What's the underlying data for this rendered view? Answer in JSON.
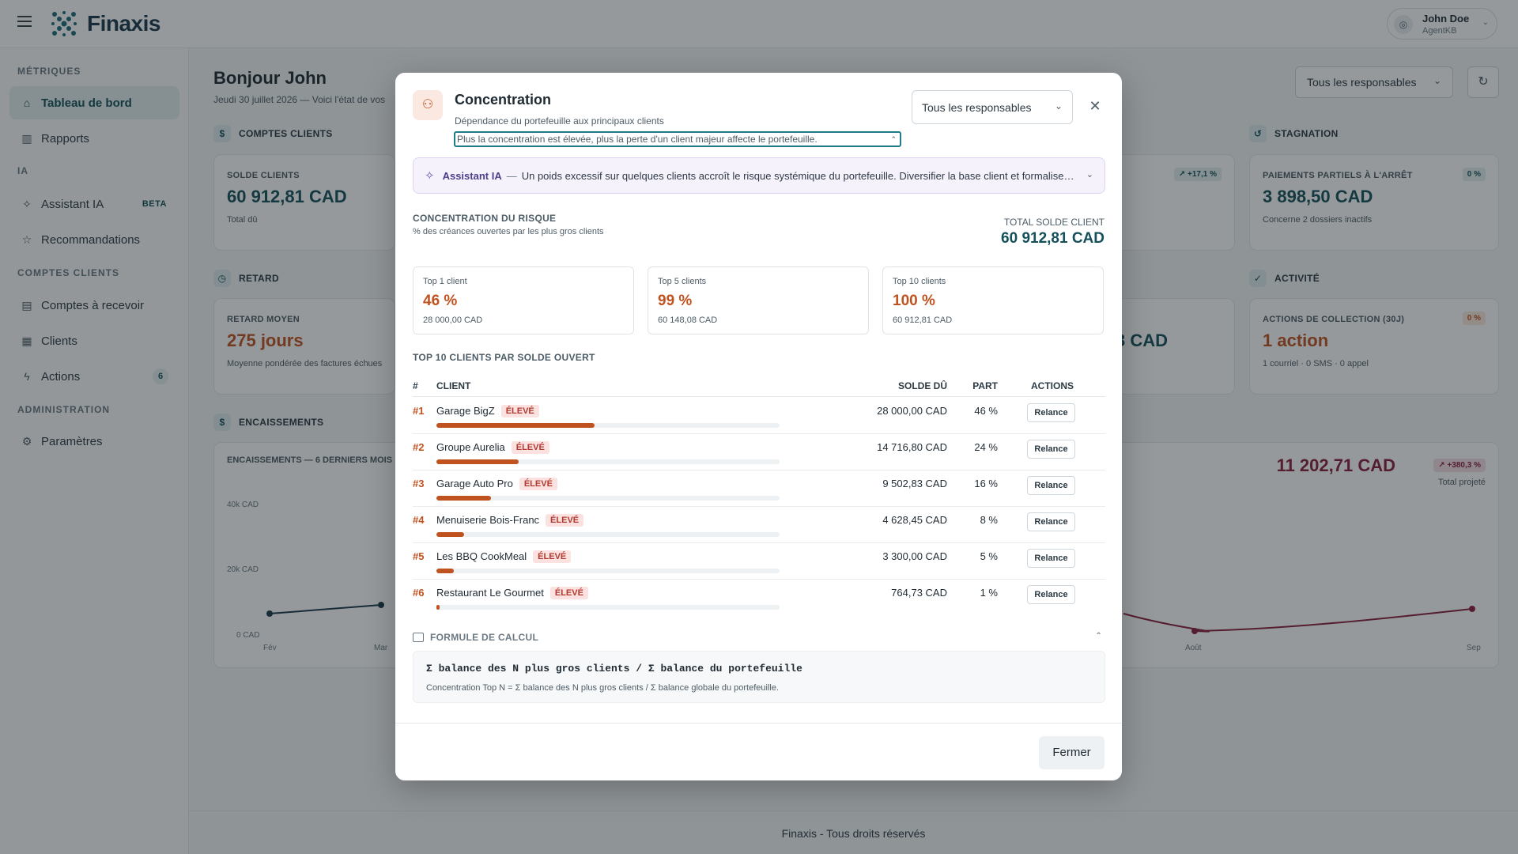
{
  "app": {
    "name": "Finaxis"
  },
  "user": {
    "name": "John Doe",
    "role": "AgentKB",
    "initials": "◎"
  },
  "sidebar": {
    "sections": [
      {
        "title": "MÉTRIQUES"
      },
      {
        "title": "IA"
      },
      {
        "title": "COMPTES CLIENTS"
      },
      {
        "title": "ADMINISTRATION"
      }
    ],
    "items": [
      {
        "label": "Tableau de bord",
        "icon": "home-icon",
        "glyph": "⌂"
      },
      {
        "label": "Rapports",
        "icon": "bar-chart-icon",
        "glyph": "▥"
      },
      {
        "label": "Assistant IA",
        "icon": "sparkle-icon",
        "glyph": "✧",
        "badge": "BETA"
      },
      {
        "label": "Recommandations",
        "icon": "star-icon",
        "glyph": "☆"
      },
      {
        "label": "Comptes à recevoir",
        "icon": "document-icon",
        "glyph": "▤"
      },
      {
        "label": "Clients",
        "icon": "building-icon",
        "glyph": "▦"
      },
      {
        "label": "Actions",
        "icon": "lightning-icon",
        "glyph": "ϟ",
        "badge": "6"
      },
      {
        "label": "Paramètres",
        "icon": "gear-icon",
        "glyph": "⚙"
      }
    ]
  },
  "dashboard": {
    "greeting": "Bonjour John",
    "subtitle": "Jeudi 30 juillet 2026 — Voici l'état de vos",
    "filter": "Tous les responsables",
    "sections": {
      "comptes": "COMPTES CLIENTS",
      "stagnation": "STAGNATION",
      "retard": "RETARD",
      "activite": "ACTIVITÉ",
      "encaissements": "ENCAISSEMENTS"
    },
    "cards": {
      "solde": {
        "label": "SOLDE CLIENTS",
        "value": "60 912,81 CAD",
        "sub": "Total dû"
      },
      "partiels": {
        "label": "PAIEMENTS PARTIELS À L'ARRÊT",
        "value": "3 898,50 CAD",
        "sub": "Concerne 2 dossiers inactifs",
        "pill": "0 %"
      },
      "hidden_pill": "↗ +17,1 %",
      "retard": {
        "label": "RETARD MOYEN",
        "value": "275 jours",
        "sub": "Moyenne pondérée des factures échues"
      },
      "partial_value": "3 CAD",
      "actions": {
        "label": "ACTIONS DE COLLECTION (30J)",
        "value": "1 action",
        "sub": "1 courriel · 0 SMS · 0 appel",
        "pill": "0 %"
      }
    },
    "chart": {
      "title": "ENCAISSEMENTS — 6 DERNIERS MOIS",
      "total": "11 202,71 CAD",
      "total_pill": "↗ +380,3 %",
      "total_sub": "Total projeté",
      "yticks": [
        "40k CAD",
        "20k CAD",
        "0 CAD"
      ],
      "xticks": [
        "Fév",
        "Mar",
        "Août",
        "Sep"
      ]
    },
    "footer": "Finaxis - Tous droits réservés"
  },
  "modal": {
    "title": "Concentration",
    "description": "Dépendance du portefeuille aux principaux clients",
    "hint": "Plus la concentration est élevée, plus la perte d'un client majeur affecte le portefeuille.",
    "filter": "Tous les responsables",
    "ai": {
      "label": "Assistant IA",
      "separator": "—",
      "message": "Un poids excessif sur quelques clients accroît le risque systémique du portefeuille. Diversifier la base client et formaliser ..."
    },
    "risk_title": "CONCENTRATION DU RISQUE",
    "risk_sub": "% des créances ouvertes par les plus gros clients",
    "total_label": "TOTAL SOLDE CLIENT",
    "total_value": "60 912,81 CAD",
    "tiles": [
      {
        "label": "Top 1 client",
        "value": "46 %",
        "sub": "28 000,00 CAD"
      },
      {
        "label": "Top 5 clients",
        "value": "99 %",
        "sub": "60 148,08 CAD"
      },
      {
        "label": "Top 10 clients",
        "value": "100 %",
        "sub": "60 912,81 CAD"
      }
    ],
    "top10_title": "TOP 10 CLIENTS PAR SOLDE OUVERT",
    "columns": {
      "rank": "#",
      "client": "CLIENT",
      "amount": "SOLDE DÛ",
      "share": "PART",
      "actions": "ACTIONS"
    },
    "rows": [
      {
        "rank": "#1",
        "client": "Garage BigZ",
        "risk": "ÉLEVÉ",
        "amount": "28 000,00 CAD",
        "share": "46 %",
        "share_value": 0.46,
        "action": "Relance"
      },
      {
        "rank": "#2",
        "client": "Groupe Aurelia",
        "risk": "ÉLEVÉ",
        "amount": "14 716,80 CAD",
        "share": "24 %",
        "share_value": 0.24,
        "action": "Relance"
      },
      {
        "rank": "#3",
        "client": "Garage Auto Pro",
        "risk": "ÉLEVÉ",
        "amount": "9 502,83 CAD",
        "share": "16 %",
        "share_value": 0.16,
        "action": "Relance"
      },
      {
        "rank": "#4",
        "client": "Menuiserie Bois-Franc",
        "risk": "ÉLEVÉ",
        "amount": "4 628,45 CAD",
        "share": "8 %",
        "share_value": 0.08,
        "action": "Relance"
      },
      {
        "rank": "#5",
        "client": "Les BBQ CookMeal",
        "risk": "ÉLEVÉ",
        "amount": "3 300,00 CAD",
        "share": "5 %",
        "share_value": 0.05,
        "action": "Relance"
      },
      {
        "rank": "#6",
        "client": "Restaurant Le Gourmet",
        "risk": "ÉLEVÉ",
        "amount": "764,73 CAD",
        "share": "1 %",
        "share_value": 0.01,
        "action": "Relance"
      }
    ],
    "formula_title": "FORMULE DE CALCUL",
    "formula_code": "Σ balance des N plus gros clients / Σ balance du portefeuille",
    "formula_text": "Concentration Top N = Σ balance des N plus gros clients / Σ balance globale du portefeuille.",
    "close_label": "Fermer"
  },
  "colors": {
    "accent": "#15505a",
    "warning": "#c0521f",
    "danger": "#b03a2e",
    "chart_line_left": "#1b3a4b",
    "chart_line_right": "#8a1f3c"
  }
}
